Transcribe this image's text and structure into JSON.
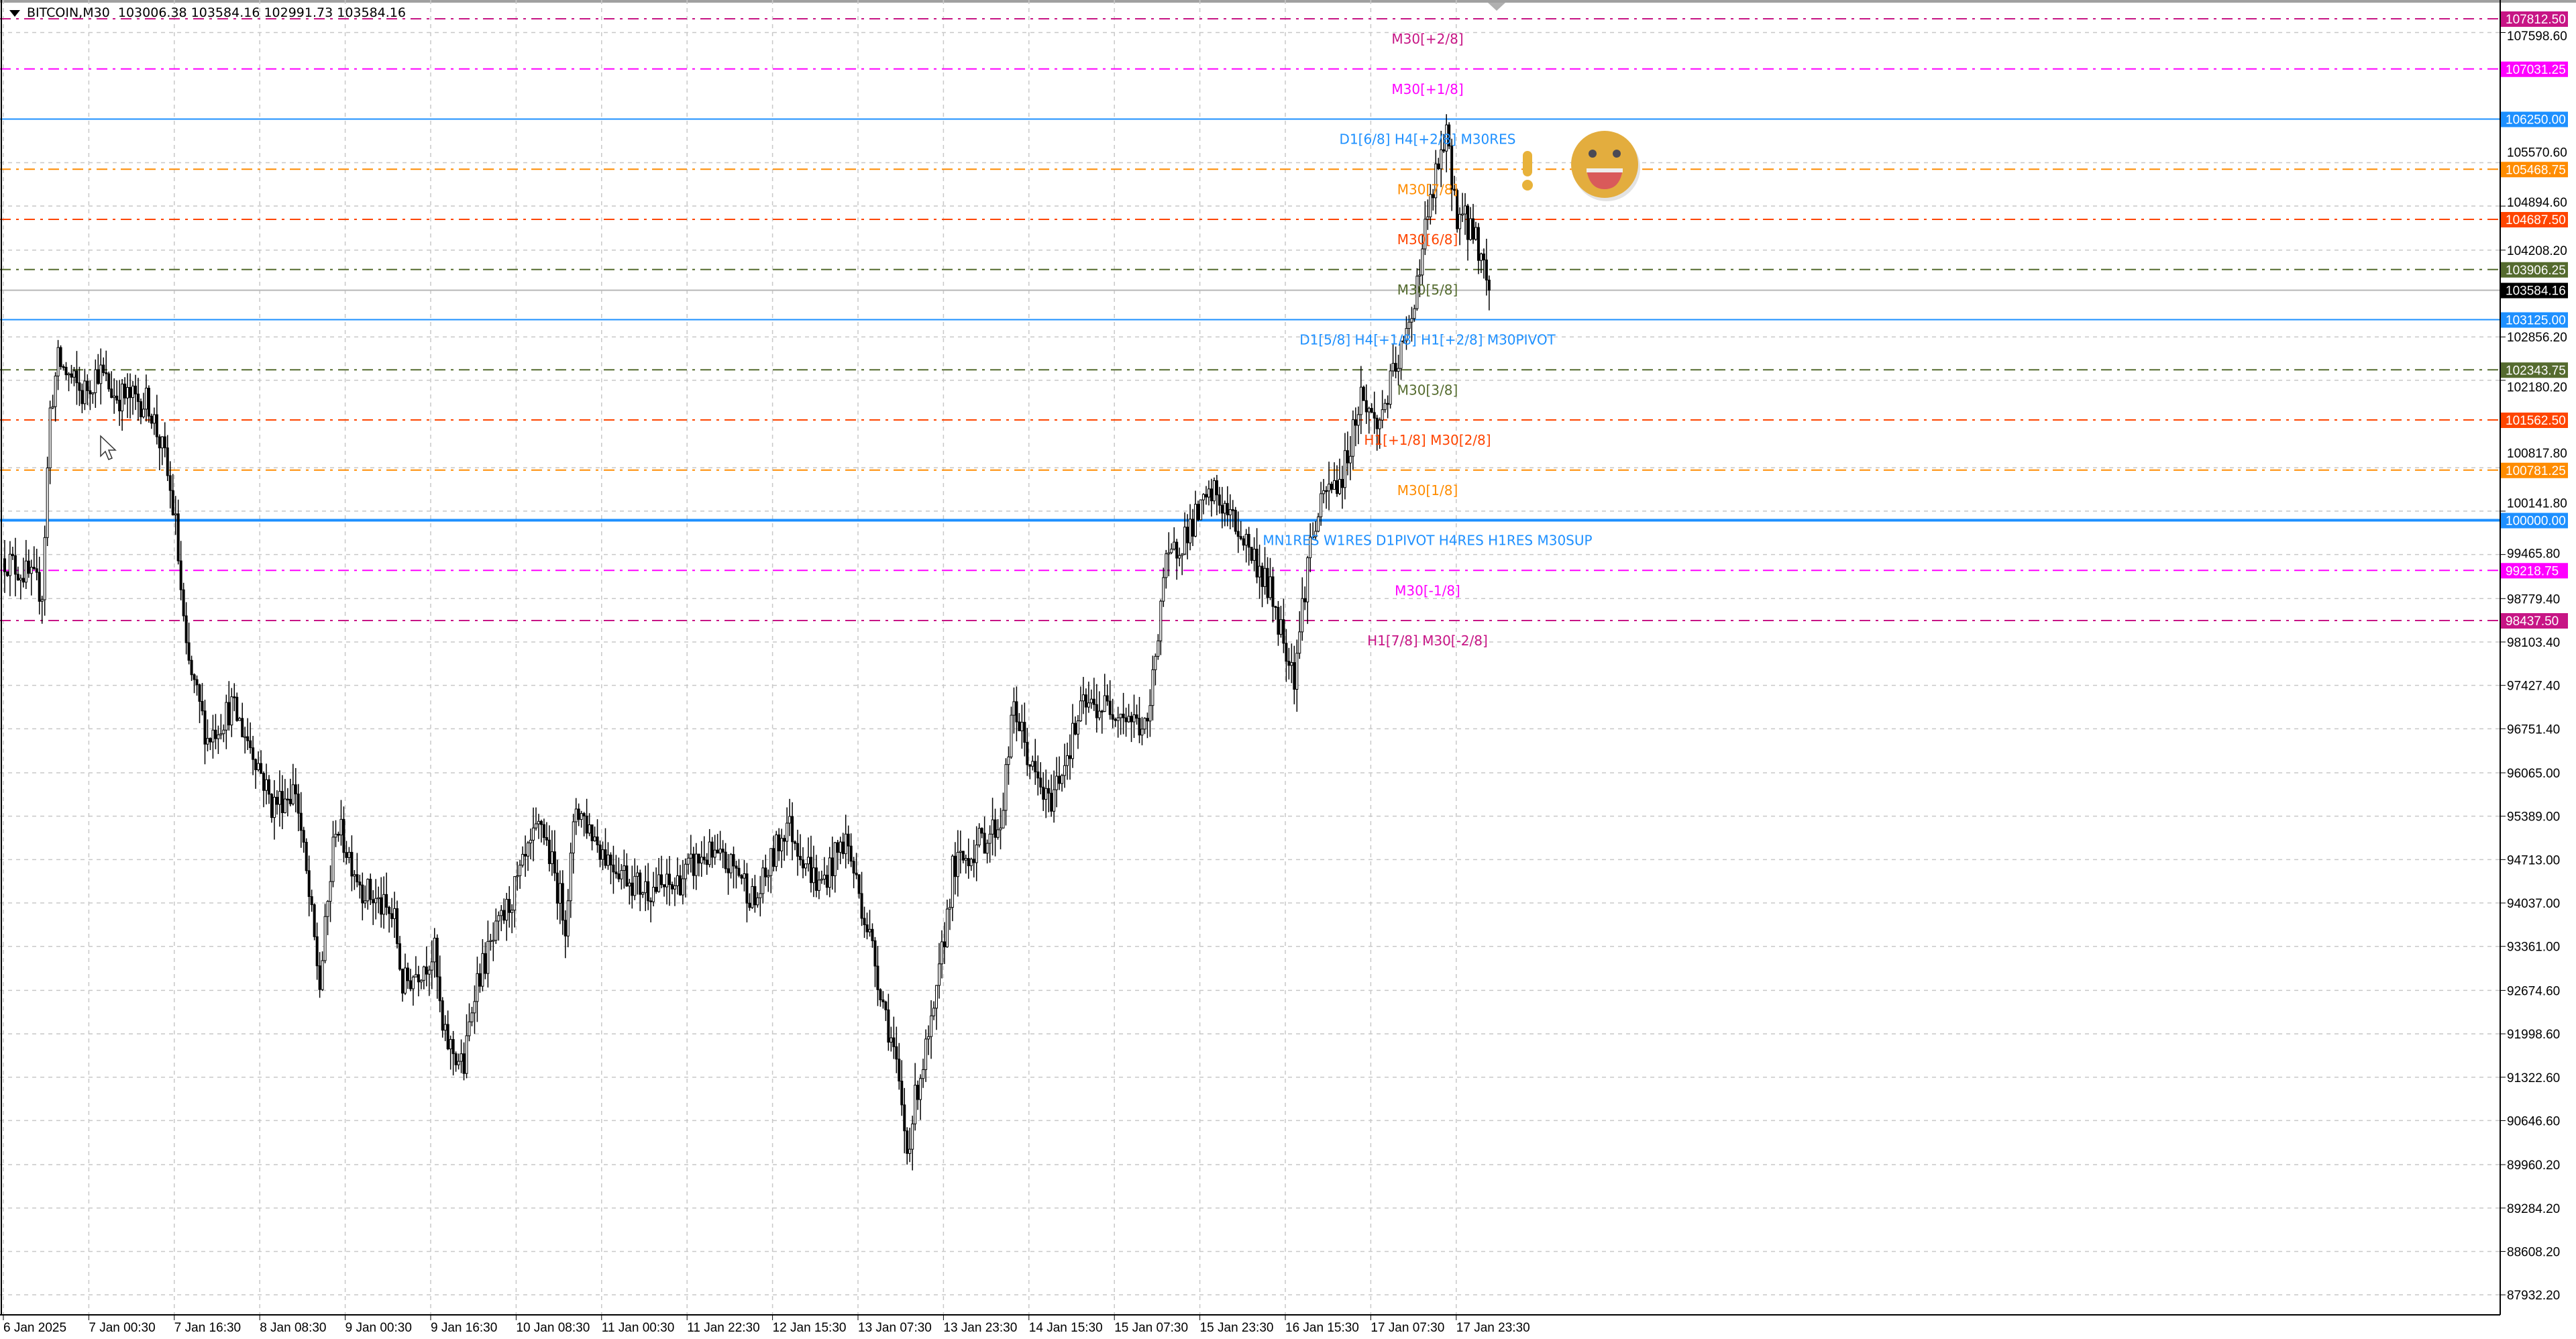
{
  "header": {
    "symbol_timeframe": "BITCOIN,M30",
    "ohlc": "103006.38 103584.16 102991.73 103584.16"
  },
  "current_price": {
    "value": 103584.16,
    "label": "103584.16",
    "color": "#000000"
  },
  "chart_data": {
    "type": "candlestick",
    "symbol": "BITCOIN",
    "timeframe": "M30",
    "ylim": [
      87932.2,
      108100
    ],
    "grid": true,
    "y_ticks": [
      "107598.60",
      "105570.60",
      "104894.60",
      "104208.20",
      "102856.20",
      "102180.20",
      "100817.80",
      "100141.80",
      "99465.80",
      "98779.40",
      "98103.40",
      "97427.40",
      "96751.40",
      "96065.00",
      "95389.00",
      "94713.00",
      "94037.00",
      "93361.00",
      "92674.60",
      "91998.60",
      "91322.60",
      "90646.60",
      "89960.20",
      "89284.20",
      "88608.20",
      "87932.20"
    ],
    "x_ticks": [
      "6 Jan 2025",
      "7 Jan 00:30",
      "7 Jan 16:30",
      "8 Jan 08:30",
      "9 Jan 00:30",
      "9 Jan 16:30",
      "10 Jan 08:30",
      "11 Jan 00:30",
      "11 Jan 22:30",
      "12 Jan 15:30",
      "13 Jan 07:30",
      "13 Jan 23:30",
      "14 Jan 15:30",
      "15 Jan 07:30",
      "15 Jan 23:30",
      "16 Jan 15:30",
      "17 Jan 07:30",
      "17 Jan 23:30"
    ],
    "approx_close_path": [
      [
        0,
        99400
      ],
      [
        8,
        99150
      ],
      [
        14,
        98890
      ],
      [
        17,
        101700
      ],
      [
        20,
        102470
      ],
      [
        29,
        101960
      ],
      [
        35,
        102340
      ],
      [
        41,
        101960
      ],
      [
        54,
        101830
      ],
      [
        60,
        100940
      ],
      [
        64,
        99920
      ],
      [
        68,
        97880
      ],
      [
        76,
        96600
      ],
      [
        85,
        97100
      ],
      [
        94,
        96330
      ],
      [
        100,
        95560
      ],
      [
        109,
        95820
      ],
      [
        118,
        92750
      ],
      [
        124,
        95300
      ],
      [
        134,
        94280
      ],
      [
        146,
        93770
      ],
      [
        149,
        92750
      ],
      [
        161,
        93260
      ],
      [
        164,
        91980
      ],
      [
        172,
        91470
      ],
      [
        176,
        92750
      ],
      [
        189,
        94020
      ],
      [
        201,
        95300
      ],
      [
        210,
        93770
      ],
      [
        214,
        95560
      ],
      [
        225,
        94790
      ],
      [
        238,
        94280
      ],
      [
        250,
        94280
      ],
      [
        262,
        94790
      ],
      [
        275,
        94540
      ],
      [
        281,
        94020
      ],
      [
        293,
        95300
      ],
      [
        305,
        94280
      ],
      [
        315,
        95050
      ],
      [
        324,
        93510
      ],
      [
        333,
        91720
      ],
      [
        338,
        90180
      ],
      [
        342,
        91210
      ],
      [
        348,
        92230
      ],
      [
        355,
        94540
      ],
      [
        367,
        95050
      ],
      [
        373,
        95300
      ],
      [
        378,
        97100
      ],
      [
        385,
        96070
      ],
      [
        391,
        95560
      ],
      [
        404,
        97100
      ],
      [
        416,
        97100
      ],
      [
        428,
        96710
      ],
      [
        434,
        99150
      ],
      [
        440,
        99660
      ],
      [
        453,
        100430
      ],
      [
        465,
        99660
      ],
      [
        474,
        98890
      ],
      [
        483,
        97610
      ],
      [
        489,
        99660
      ],
      [
        495,
        100430
      ],
      [
        501,
        100680
      ],
      [
        508,
        101960
      ],
      [
        514,
        101450
      ],
      [
        520,
        102220
      ],
      [
        526,
        102980
      ],
      [
        532,
        104520
      ],
      [
        537,
        105540
      ],
      [
        540,
        105930
      ],
      [
        544,
        104780
      ],
      [
        550,
        104520
      ],
      [
        553,
        104140
      ],
      [
        556,
        103584
      ]
    ],
    "levels": [
      {
        "price": 107812.5,
        "tag": "107812.50",
        "label": "M30[+2/8]",
        "color": "#c71585",
        "style": "dashdot"
      },
      {
        "price": 107031.25,
        "tag": "107031.25",
        "label": "M30[+1/8]",
        "color": "#ff00ff",
        "style": "dashdot"
      },
      {
        "price": 106250.0,
        "tag": "106250.00",
        "label": "D1[6/8] H4[+2/8] M30RES",
        "color": "#1e90ff",
        "style": "solid"
      },
      {
        "price": 105468.75,
        "tag": "105468.75",
        "label": "M30[7/8]",
        "color": "#ff8c00",
        "style": "dashdot"
      },
      {
        "price": 104687.5,
        "tag": "104687.50",
        "label": "M30[6/8]",
        "color": "#ff4500",
        "style": "dashdot"
      },
      {
        "price": 103906.25,
        "tag": "103906.25",
        "label": "M30[5/8]",
        "color": "#556b2f",
        "style": "dashdot"
      },
      {
        "price": 103125.0,
        "tag": "103125.00",
        "label": "D1[5/8] H4[+1/8] H1[+2/8] M30PIVOT",
        "color": "#1e90ff",
        "style": "solid"
      },
      {
        "price": 102343.75,
        "tag": "102343.75",
        "label": "M30[3/8]",
        "color": "#556b2f",
        "style": "dashdot"
      },
      {
        "price": 101562.5,
        "tag": "101562.50",
        "label": "H1[+1/8] M30[2/8]",
        "color": "#ff4500",
        "style": "dashdot"
      },
      {
        "price": 100781.25,
        "tag": "100781.25",
        "label": "M30[1/8]",
        "color": "#ff8c00",
        "style": "dashdot"
      },
      {
        "price": 100000.0,
        "tag": "100000.00",
        "label": "MN1RES W1RES D1PIVOT H4RES H1RES M30SUP",
        "color": "#1e90ff",
        "style": "solid-thick"
      },
      {
        "price": 99218.75,
        "tag": "99218.75",
        "label": "M30[-1/8]",
        "color": "#ff00ff",
        "style": "dashdot"
      },
      {
        "price": 98437.5,
        "tag": "98437.50",
        "label": "H1[7/8] M30[-2/8]",
        "color": "#c71585",
        "style": "dashdot"
      }
    ]
  },
  "icons": {
    "smiley": "smiley-face-icon",
    "alert": "exclamation-icon",
    "cursor": "mouse-pointer-icon"
  }
}
